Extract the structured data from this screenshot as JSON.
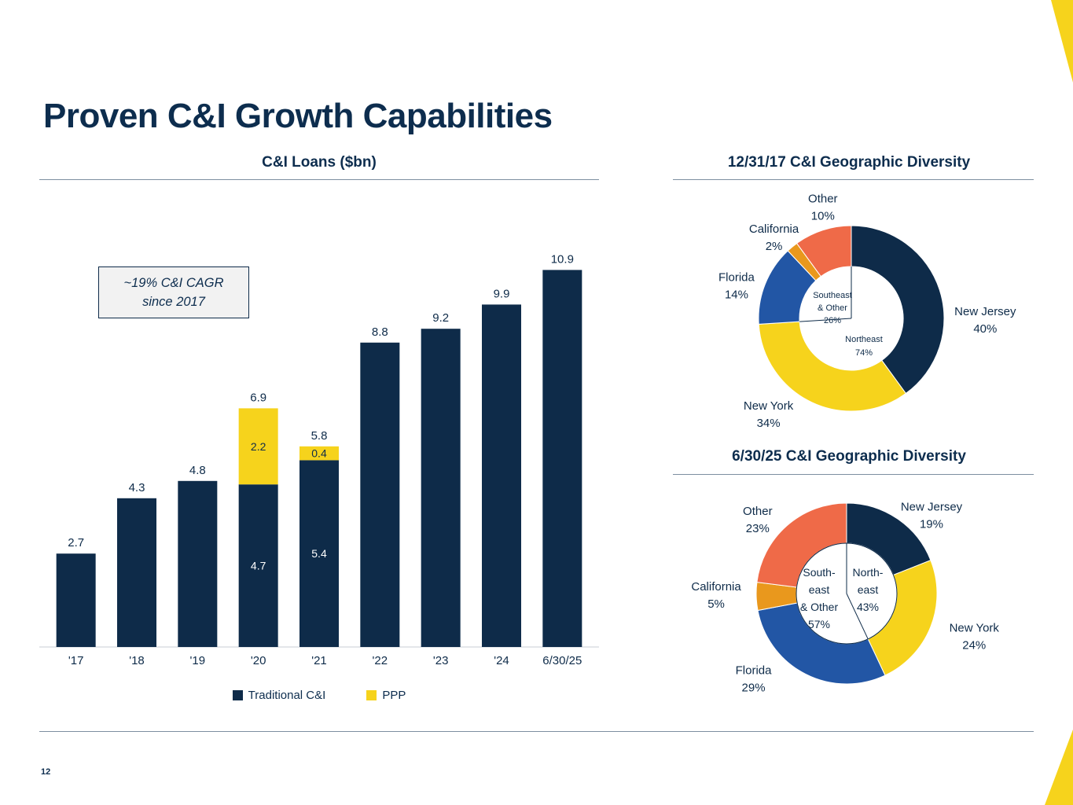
{
  "page": {
    "title": "Proven C&I Growth Capabilities",
    "number": "12"
  },
  "colors": {
    "navy": "#0e2b49",
    "yellow": "#f6d31c",
    "blue": "#2256a5",
    "amber": "#e9981d",
    "coral": "#ef6a48",
    "rule": "#7d8fa0",
    "axis": "#c9ced4",
    "callout_bg": "#f2f2f2"
  },
  "chart_data": [
    {
      "type": "bar",
      "stacked": true,
      "title": "C&I Loans ($bn)",
      "categories": [
        "'17",
        "'18",
        "'19",
        "'20",
        "'21",
        "'22",
        "'23",
        "'24",
        "6/30/25"
      ],
      "series": [
        {
          "name": "Traditional C&I",
          "color": "#0e2b49",
          "values": [
            2.7,
            4.3,
            4.8,
            4.7,
            5.4,
            8.8,
            9.2,
            9.9,
            10.9
          ]
        },
        {
          "name": "PPP",
          "color": "#f6d31c",
          "values": [
            0,
            0,
            0,
            2.2,
            0.4,
            0,
            0,
            0,
            0
          ]
        }
      ],
      "totals": [
        2.7,
        4.3,
        4.8,
        6.9,
        5.8,
        8.8,
        9.2,
        9.9,
        10.9
      ],
      "annotation_lines": [
        "~19% C&I CAGR",
        "since 2017"
      ],
      "ylim": [
        0,
        12
      ],
      "legend_position": "bottom"
    },
    {
      "type": "pie",
      "subtype": "donut",
      "title": "12/31/17 C&I Geographic Diversity",
      "slices": [
        {
          "label": "New Jersey",
          "value": 40,
          "color": "#0e2b49"
        },
        {
          "label": "New York",
          "value": 34,
          "color": "#f6d31c"
        },
        {
          "label": "Florida",
          "value": 14,
          "color": "#2256a5"
        },
        {
          "label": "California",
          "value": 2,
          "color": "#e9981d"
        },
        {
          "label": "Other",
          "value": 10,
          "color": "#ef6a48"
        }
      ],
      "inner_groups": [
        {
          "lines": [
            "Southeast",
            "& Other",
            "26%"
          ]
        },
        {
          "lines": [
            "Northeast",
            "74%"
          ]
        }
      ]
    },
    {
      "type": "pie",
      "subtype": "donut",
      "title": "6/30/25 C&I Geographic Diversity",
      "slices": [
        {
          "label": "New Jersey",
          "value": 19,
          "color": "#0e2b49"
        },
        {
          "label": "New York",
          "value": 24,
          "color": "#f6d31c"
        },
        {
          "label": "Florida",
          "value": 29,
          "color": "#2256a5"
        },
        {
          "label": "California",
          "value": 5,
          "color": "#e9981d"
        },
        {
          "label": "Other",
          "value": 23,
          "color": "#ef6a48"
        }
      ],
      "inner_groups": [
        {
          "lines": [
            "South-",
            "east",
            "& Other",
            "57%"
          ]
        },
        {
          "lines": [
            "North-",
            "east",
            "43%"
          ]
        }
      ]
    }
  ]
}
